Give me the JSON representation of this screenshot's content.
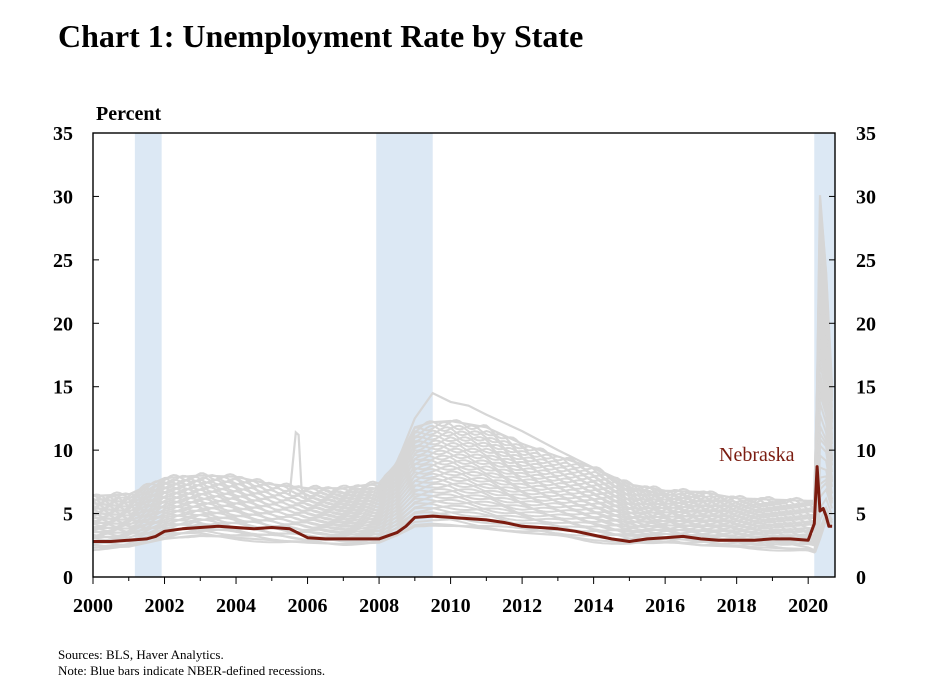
{
  "title": "Chart 1: Unemployment Rate by State",
  "unit_label": "Percent",
  "notes": {
    "sources": "Sources: BLS, Haver Analytics.",
    "note": "Note: Blue bars indicate NBER-defined recessions."
  },
  "colors": {
    "recession": "#dce8f4",
    "states": "#d6d6d6",
    "highlight": "#7b1c10",
    "axis": "#000000"
  },
  "chart_data": {
    "type": "line",
    "title": "Chart 1: Unemployment Rate by State",
    "ylabel": "Percent",
    "xlim": [
      2000,
      2020.75
    ],
    "ylim": [
      0,
      35
    ],
    "x_ticks": [
      "2000",
      "2002",
      "2004",
      "2006",
      "2008",
      "2010",
      "2012",
      "2014",
      "2016",
      "2018",
      "2020"
    ],
    "y_ticks": [
      "0",
      "5",
      "10",
      "15",
      "20",
      "25",
      "30",
      "35"
    ],
    "grid": false,
    "recessions": [
      [
        2001.17,
        2001.92
      ],
      [
        2007.92,
        2009.5
      ],
      [
        2020.17,
        2020.75
      ]
    ],
    "highlight_series": {
      "name": "Nebraska",
      "x": [
        2000,
        2000.5,
        2001,
        2001.5,
        2001.75,
        2002,
        2002.5,
        2003,
        2003.5,
        2004,
        2004.5,
        2005,
        2005.5,
        2006,
        2006.5,
        2007,
        2007.5,
        2008,
        2008.5,
        2008.75,
        2009,
        2009.5,
        2010,
        2010.5,
        2011,
        2011.5,
        2012,
        2012.5,
        2013,
        2013.5,
        2014,
        2014.5,
        2015,
        2015.5,
        2016,
        2016.5,
        2017,
        2017.5,
        2018,
        2018.5,
        2019,
        2019.5,
        2020,
        2020.17,
        2020.25,
        2020.33,
        2020.42,
        2020.5,
        2020.58,
        2020.67
      ],
      "values": [
        2.8,
        2.8,
        2.9,
        3.0,
        3.2,
        3.6,
        3.8,
        3.9,
        4.0,
        3.9,
        3.8,
        3.9,
        3.8,
        3.1,
        3.0,
        3.0,
        3.0,
        3.0,
        3.5,
        4.0,
        4.7,
        4.8,
        4.7,
        4.6,
        4.5,
        4.3,
        4.0,
        3.9,
        3.8,
        3.6,
        3.3,
        3.0,
        2.8,
        3.0,
        3.1,
        3.2,
        3.0,
        2.9,
        2.9,
        2.9,
        3.0,
        3.0,
        2.9,
        4.2,
        8.7,
        5.2,
        5.4,
        4.8,
        4.0,
        4.0
      ]
    },
    "band_series": [
      {
        "x": [
          2000,
          2001,
          2002,
          2003,
          2004,
          2005,
          2006,
          2007,
          2008,
          2008.5,
          2009,
          2009.5,
          2010,
          2011,
          2012,
          2013,
          2014,
          2015,
          2016,
          2017,
          2018,
          2019,
          2020,
          2020.2,
          2020.33,
          2020.5,
          2020.67
        ],
        "values": [
          6.4,
          6.5,
          7.8,
          8.0,
          7.9,
          7.3,
          7.0,
          7.0,
          7.4,
          9.0,
          11.8,
          12.2,
          12.3,
          11.8,
          10.5,
          9.5,
          8.6,
          7.3,
          6.8,
          6.7,
          6.2,
          6.1,
          6.0,
          6.0,
          30.1,
          24.0,
          15.0
        ]
      },
      {
        "x": [
          2000,
          2001,
          2002,
          2003,
          2004,
          2005,
          2006,
          2007,
          2008,
          2008.5,
          2009,
          2009.5,
          2010,
          2011,
          2012,
          2013,
          2014,
          2015,
          2016,
          2017,
          2018,
          2019,
          2020,
          2020.2,
          2020.33,
          2020.5,
          2020.67
        ],
        "values": [
          2.3,
          2.4,
          3.0,
          3.3,
          3.1,
          2.9,
          2.7,
          2.6,
          2.7,
          3.3,
          4.1,
          4.2,
          4.1,
          3.8,
          3.5,
          3.3,
          2.9,
          2.7,
          2.8,
          2.5,
          2.4,
          2.3,
          2.2,
          2.0,
          3.0,
          4.5,
          4.0
        ]
      },
      {
        "x": [
          2005.5,
          2005.67,
          2005.75,
          2005.83,
          2006
        ],
        "values": [
          6.5,
          11.4,
          11.2,
          7.0,
          6.0
        ]
      },
      {
        "x": [
          2008.5,
          2009,
          2009.5,
          2010,
          2010.5,
          2011,
          2012,
          2013,
          2014,
          2015,
          2016
        ],
        "values": [
          9.0,
          12.5,
          14.5,
          13.8,
          13.5,
          12.8,
          11.5,
          10.0,
          8.6,
          7.0,
          6.5
        ]
      }
    ],
    "annotations": [
      {
        "text": "Nebraska"
      }
    ]
  }
}
